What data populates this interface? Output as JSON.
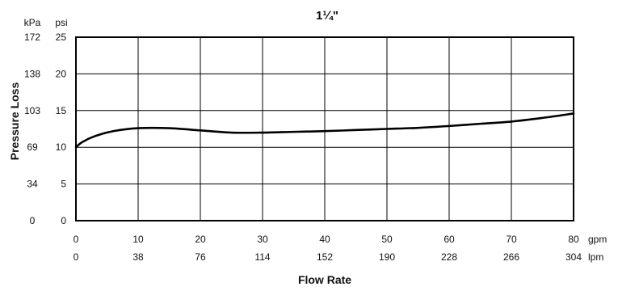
{
  "chart_data": {
    "type": "line",
    "title": "1¼\"",
    "xlabel": "Flow Rate",
    "ylabel": "Pressure Loss",
    "x_units": [
      "gpm",
      "lpm"
    ],
    "y_units": [
      "kPa",
      "psi"
    ],
    "xlim": [
      0,
      80
    ],
    "ylim": [
      0,
      25
    ],
    "grid": true,
    "x_ticks_gpm": [
      "0",
      "10",
      "20",
      "30",
      "40",
      "50",
      "60",
      "70",
      "80"
    ],
    "x_ticks_lpm": [
      "0",
      "38",
      "76",
      "114",
      "152",
      "190",
      "228",
      "266",
      "304"
    ],
    "y_ticks_psi": [
      "0",
      "5",
      "10",
      "15",
      "20",
      "25"
    ],
    "y_ticks_kpa": [
      "0",
      "34",
      "69",
      "103",
      "138",
      "172"
    ],
    "series": [
      {
        "color": "#000000",
        "x": [
          0,
          1,
          3,
          6,
          10,
          15,
          20,
          25,
          30,
          35,
          40,
          45,
          50,
          55,
          60,
          65,
          70,
          75,
          80
        ],
        "y": [
          10.0,
          10.7,
          11.5,
          12.2,
          12.6,
          12.6,
          12.3,
          12.0,
          12.0,
          12.1,
          12.2,
          12.35,
          12.5,
          12.65,
          12.9,
          13.2,
          13.5,
          14.0,
          14.6
        ]
      }
    ]
  }
}
